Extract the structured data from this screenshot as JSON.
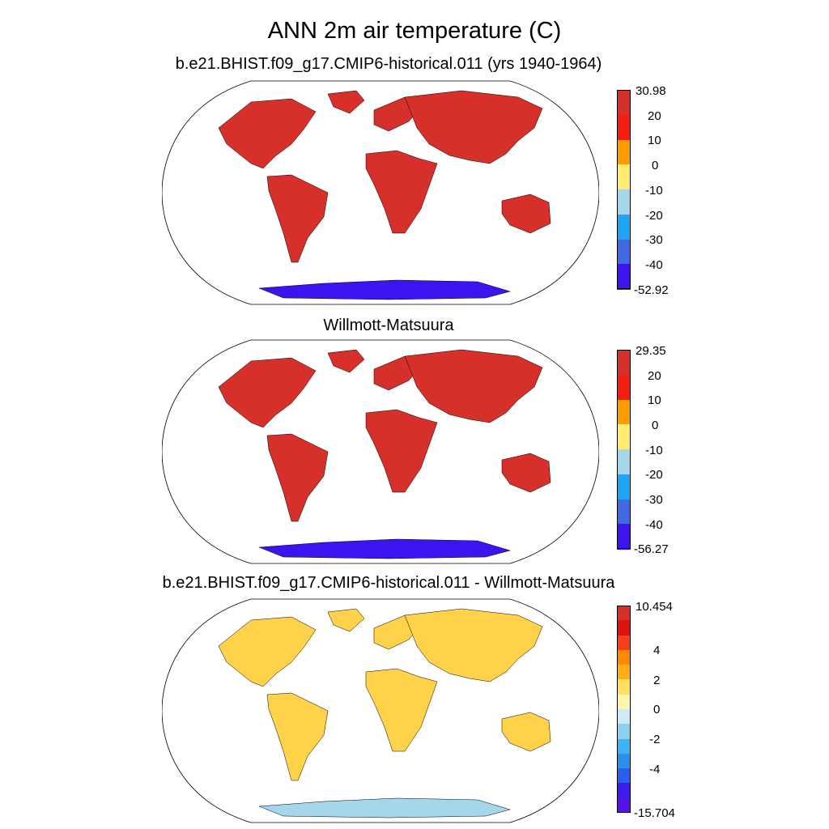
{
  "title": "ANN 2m air temperature (C)",
  "panels": [
    {
      "title": "b.e21.BHIST.f09_g17.CMIP6-historical.011 (yrs 1940-1964)",
      "colorbar": {
        "max_label": "30.98",
        "min_label": "-52.92",
        "ticks": [
          "20",
          "10",
          "0",
          "-10",
          "-20",
          "-30",
          "-40"
        ],
        "colors": [
          "#d7302a",
          "#f51d12",
          "#ff9e00",
          "#ffec6e",
          "#a6d6ec",
          "#1fa6f2",
          "#4169e1",
          "#3d14f0"
        ]
      },
      "fill": "#d7302a"
    },
    {
      "title": "Willmott-Matsuura",
      "colorbar": {
        "max_label": "29.35",
        "min_label": "-56.27",
        "ticks": [
          "20",
          "10",
          "0",
          "-10",
          "-20",
          "-30",
          "-40"
        ],
        "colors": [
          "#d7302a",
          "#f51d12",
          "#ff9e00",
          "#ffec6e",
          "#a6d6ec",
          "#1fa6f2",
          "#4169e1",
          "#3d14f0"
        ]
      },
      "fill": "#d7302a"
    },
    {
      "title": "b.e21.BHIST.f09_g17.CMIP6-historical.011 - Willmott-Matsuura",
      "colorbar": {
        "max_label": "10.454",
        "min_label": "-15.704",
        "ticks": [
          "4",
          "2",
          "0",
          "-2",
          "-4"
        ],
        "colors": [
          "#d7302a",
          "#e0120f",
          "#f5401a",
          "#ff8a00",
          "#ffae1a",
          "#ffe060",
          "#fff6a8",
          "#cfeaf3",
          "#8dd0ee",
          "#3fb2f5",
          "#2b8ef0",
          "#2a5ef0",
          "#3d1cf0",
          "#5414e8"
        ]
      },
      "fill": "#ffd24a"
    }
  ]
}
